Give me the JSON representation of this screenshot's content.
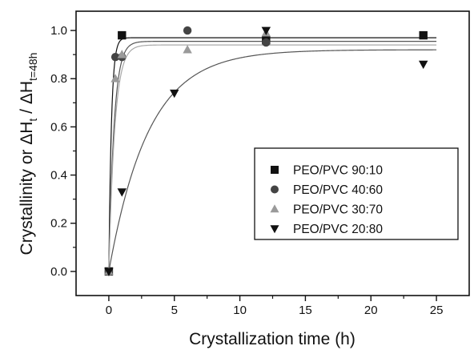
{
  "chart_data": {
    "type": "scatter",
    "xlabel": "Crystallization time (h)",
    "ylabel_parts": [
      "Crystallinity or ΔH",
      "t",
      " / ΔH",
      "t=48h"
    ],
    "xlim": [
      -2.5,
      27.5
    ],
    "ylim": [
      -0.1,
      1.08
    ],
    "x_ticks": [
      0,
      5,
      10,
      15,
      20,
      25
    ],
    "x_tick_labels": [
      "0",
      "5",
      "10",
      "15",
      "20",
      "25"
    ],
    "y_ticks": [
      0.0,
      0.2,
      0.4,
      0.6,
      0.8,
      1.0
    ],
    "y_tick_labels": [
      "0.0",
      "0.2",
      "0.4",
      "0.6",
      "0.8",
      "1.0"
    ],
    "legend_position": "center-right",
    "series": [
      {
        "name": "PEO/PVC 90:10",
        "marker": "square",
        "color": "#111111",
        "points": [
          [
            0,
            0.0
          ],
          [
            1,
            0.98
          ],
          [
            12,
            0.96
          ],
          [
            24,
            0.98
          ]
        ],
        "fit": {
          "plateau": 0.97,
          "rate": 5.0
        }
      },
      {
        "name": "PEO/PVC 40:60",
        "marker": "circle",
        "color": "#444444",
        "points": [
          [
            0,
            0.0
          ],
          [
            0.5,
            0.89
          ],
          [
            1,
            0.89
          ],
          [
            6,
            1.0
          ],
          [
            12,
            0.95
          ]
        ],
        "fit": {
          "plateau": 0.955,
          "rate": 2.5
        }
      },
      {
        "name": "PEO/PVC 30:70",
        "marker": "triangle-up",
        "color": "#9a9a9a",
        "points": [
          [
            0,
            0.0
          ],
          [
            0.5,
            0.8
          ],
          [
            1,
            0.9
          ],
          [
            6,
            0.92
          ],
          [
            12,
            0.99
          ]
        ],
        "fit": {
          "plateau": 0.94,
          "rate": 2.2
        }
      },
      {
        "name": "PEO/PVC 20:80",
        "marker": "triangle-down",
        "color": "#111111",
        "points": [
          [
            0,
            0.0
          ],
          [
            1,
            0.33
          ],
          [
            5,
            0.74
          ],
          [
            12,
            1.0
          ],
          [
            24,
            0.86
          ]
        ],
        "fit": {
          "plateau": 0.92,
          "rate": 0.33
        }
      }
    ]
  }
}
